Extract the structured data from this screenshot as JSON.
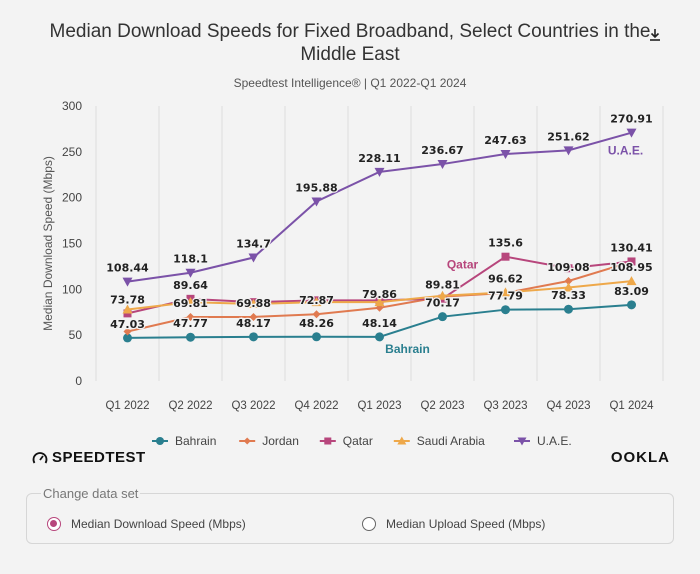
{
  "header": {
    "title": "Median Download Speeds for Fixed Broadband, Select Countries in the Middle East",
    "subtitle": "Speedtest Intelligence® | Q1 2022-Q1 2024",
    "download_icon": "download-icon"
  },
  "branding": {
    "left_logo": "SPEEDTEST",
    "left_icon": "gauge-icon",
    "right_logo": "OOKLA"
  },
  "data_set": {
    "legend": "Change data set",
    "options": [
      {
        "label": "Median Download Speed (Mbps)",
        "checked": true
      },
      {
        "label": "Median Upload Speed (Mbps)",
        "checked": false
      }
    ],
    "accent_color": "#b7467c"
  },
  "chart_data": {
    "type": "line",
    "title": "Median Download Speeds for Fixed Broadband, Select Countries in the Middle East",
    "subtitle": "Speedtest Intelligence® | Q1 2022-Q1 2024",
    "xlabel": "",
    "ylabel": "Median Download Speed (Mbps)",
    "ylim": [
      0,
      300
    ],
    "yticks": [
      0,
      50,
      100,
      150,
      200,
      250,
      300
    ],
    "grid": "vertical",
    "legend_position": "bottom",
    "categories": [
      "Q1 2022",
      "Q2 2022",
      "Q3 2022",
      "Q4 2022",
      "Q1 2023",
      "Q2 2023",
      "Q3 2023",
      "Q4 2023",
      "Q1 2024"
    ],
    "series": [
      {
        "name": "Bahrain",
        "color": "#2a7f8f",
        "marker": "circle",
        "values": [
          47.03,
          47.77,
          48.17,
          48.26,
          48.14,
          70.17,
          77.79,
          78.33,
          83.09
        ],
        "inline_label": "Bahrain",
        "inline_label_at": 4
      },
      {
        "name": "Jordan",
        "color": "#e07a50",
        "marker": "diamond",
        "values": [
          54,
          69.81,
          69.88,
          72.87,
          79.86,
          92,
          96,
          109.08,
          130
        ],
        "inline_label": null
      },
      {
        "name": "Qatar",
        "color": "#b7467c",
        "marker": "square",
        "values": [
          73.78,
          89.64,
          86,
          88,
          88,
          89.81,
          135.6,
          123,
          130.41
        ],
        "inline_label": "Qatar",
        "inline_label_at": 5
      },
      {
        "name": "Saudi Arabia",
        "color": "#eea84a",
        "marker": "triangle",
        "values": [
          78,
          86,
          84,
          86,
          86,
          93,
          96.62,
          102,
          108.95
        ],
        "inline_label": null
      },
      {
        "name": "U.A.E.",
        "color": "#7b52a8",
        "marker": "triangle-down",
        "values": [
          108.44,
          118.1,
          134.7,
          195.88,
          228.11,
          236.67,
          247.63,
          251.62,
          270.91
        ],
        "inline_label": "U.A.E.",
        "inline_label_at": 8
      }
    ],
    "data_labels": [
      {
        "text": "108.44",
        "cat": 0,
        "value": 108.44
      },
      {
        "text": "73.78",
        "cat": 0,
        "value": 73.78
      },
      {
        "text": "47.03",
        "cat": 0,
        "value": 47.03
      },
      {
        "text": "118.1",
        "cat": 1,
        "value": 118.1
      },
      {
        "text": "89.64",
        "cat": 1,
        "value": 89.64
      },
      {
        "text": "69.81",
        "cat": 1,
        "value": 69.81
      },
      {
        "text": "47.77",
        "cat": 1,
        "value": 47.77
      },
      {
        "text": "134.7",
        "cat": 2,
        "value": 134.7
      },
      {
        "text": "69.88",
        "cat": 2,
        "value": 69.88
      },
      {
        "text": "48.17",
        "cat": 2,
        "value": 48.17
      },
      {
        "text": "195.88",
        "cat": 3,
        "value": 195.88
      },
      {
        "text": "72.87",
        "cat": 3,
        "value": 72.87
      },
      {
        "text": "48.26",
        "cat": 3,
        "value": 48.26
      },
      {
        "text": "228.11",
        "cat": 4,
        "value": 228.11
      },
      {
        "text": "79.86",
        "cat": 4,
        "value": 79.86
      },
      {
        "text": "48.14",
        "cat": 4,
        "value": 48.14
      },
      {
        "text": "236.67",
        "cat": 5,
        "value": 236.67
      },
      {
        "text": "89.81",
        "cat": 5,
        "value": 89.81
      },
      {
        "text": "70.17",
        "cat": 5,
        "value": 70.17
      },
      {
        "text": "247.63",
        "cat": 6,
        "value": 247.63
      },
      {
        "text": "135.6",
        "cat": 6,
        "value": 135.6
      },
      {
        "text": "96.62",
        "cat": 6,
        "value": 96.62
      },
      {
        "text": "77.79",
        "cat": 6,
        "value": 77.79
      },
      {
        "text": "251.62",
        "cat": 7,
        "value": 251.62
      },
      {
        "text": "109.08",
        "cat": 7,
        "value": 109.08
      },
      {
        "text": "78.33",
        "cat": 7,
        "value": 78.33
      },
      {
        "text": "270.91",
        "cat": 8,
        "value": 270.91
      },
      {
        "text": "130.41",
        "cat": 8,
        "value": 130.41
      },
      {
        "text": "108.95",
        "cat": 8,
        "value": 108.95
      },
      {
        "text": "83.09",
        "cat": 8,
        "value": 83.09
      }
    ]
  }
}
